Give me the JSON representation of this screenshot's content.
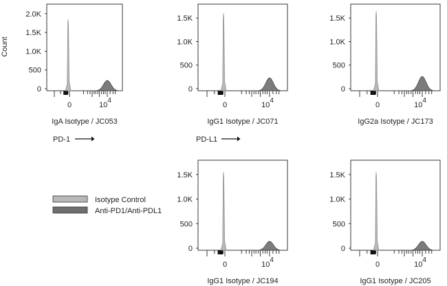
{
  "figure": {
    "y_axis_title": "Count",
    "marker_labels": [
      {
        "id": "pd1",
        "text": "PD-1"
      },
      {
        "id": "pdl1",
        "text": "PD-L1"
      }
    ]
  },
  "legend": [
    {
      "label": "Isotype Control",
      "color": "#b8b8b8"
    },
    {
      "label": "Anti-PD1/Anti-PDL1",
      "color": "#6e6e6e"
    }
  ],
  "chart_data": [
    {
      "type": "area",
      "xlabel": "IgA Isotype / JC053",
      "ylabel": "Count",
      "x_ticks": [
        "0",
        "10^4"
      ],
      "y_ticks": [
        0,
        500,
        1000,
        1500,
        2000
      ],
      "y_tick_labels": [
        "0",
        "500",
        "1.0K",
        "1.5K",
        "2.0K"
      ],
      "ylim": [
        0,
        2200
      ],
      "x_scale": "biexponential",
      "series": [
        {
          "name": "Isotype Control",
          "peak_x": 0,
          "peak_count": 1850
        },
        {
          "name": "Anti-PD1/Anti-PDL1",
          "peak_x": 10000,
          "peak_count": 220
        }
      ]
    },
    {
      "type": "area",
      "xlabel": "IgG1 Isotype / JC071",
      "ylabel": "",
      "x_ticks": [
        "0",
        "10^4"
      ],
      "y_ticks": [
        0,
        500,
        1000,
        1500
      ],
      "y_tick_labels": [
        "0",
        "500",
        "1.0K",
        "1.5K"
      ],
      "ylim": [
        0,
        1750
      ],
      "x_scale": "biexponential",
      "series": [
        {
          "name": "Isotype Control",
          "peak_x": 0,
          "peak_count": 1600
        },
        {
          "name": "Anti-PD1/Anti-PDL1",
          "peak_x": 10000,
          "peak_count": 230
        }
      ]
    },
    {
      "type": "area",
      "xlabel": "IgG2a Isotype / JC173",
      "ylabel": "",
      "x_ticks": [
        "0",
        "10^4"
      ],
      "y_ticks": [
        0,
        500,
        1000,
        1500
      ],
      "y_tick_labels": [
        "0",
        "500",
        "1.0K",
        "1.5K"
      ],
      "ylim": [
        0,
        1750
      ],
      "x_scale": "biexponential",
      "series": [
        {
          "name": "Isotype Control",
          "peak_x": 0,
          "peak_count": 1650
        },
        {
          "name": "Anti-PD1/Anti-PDL1",
          "peak_x": 10000,
          "peak_count": 260
        }
      ]
    },
    {
      "type": "area",
      "xlabel": "IgG1 Isotype / JC194",
      "ylabel": "",
      "x_ticks": [
        "0",
        "10^4"
      ],
      "y_ticks": [
        0,
        500,
        1000,
        1500
      ],
      "y_tick_labels": [
        "0",
        "500",
        "1.0K",
        "1.5K"
      ],
      "ylim": [
        0,
        1750
      ],
      "x_scale": "biexponential",
      "series": [
        {
          "name": "Isotype Control",
          "peak_x": 0,
          "peak_count": 1550
        },
        {
          "name": "Anti-PD1/Anti-PDL1",
          "peak_x": 10000,
          "peak_count": 140
        }
      ]
    },
    {
      "type": "area",
      "xlabel": "IgG1 Isotype / JC205",
      "ylabel": "",
      "x_ticks": [
        "0",
        "10^4"
      ],
      "y_ticks": [
        0,
        500,
        1000,
        1500
      ],
      "y_tick_labels": [
        "0",
        "500",
        "1.0K",
        "1.5K"
      ],
      "ylim": [
        0,
        1750
      ],
      "x_scale": "biexponential",
      "series": [
        {
          "name": "Isotype Control",
          "peak_x": 0,
          "peak_count": 1550
        },
        {
          "name": "Anti-PD1/Anti-PDL1",
          "peak_x": 10000,
          "peak_count": 140
        }
      ]
    }
  ]
}
